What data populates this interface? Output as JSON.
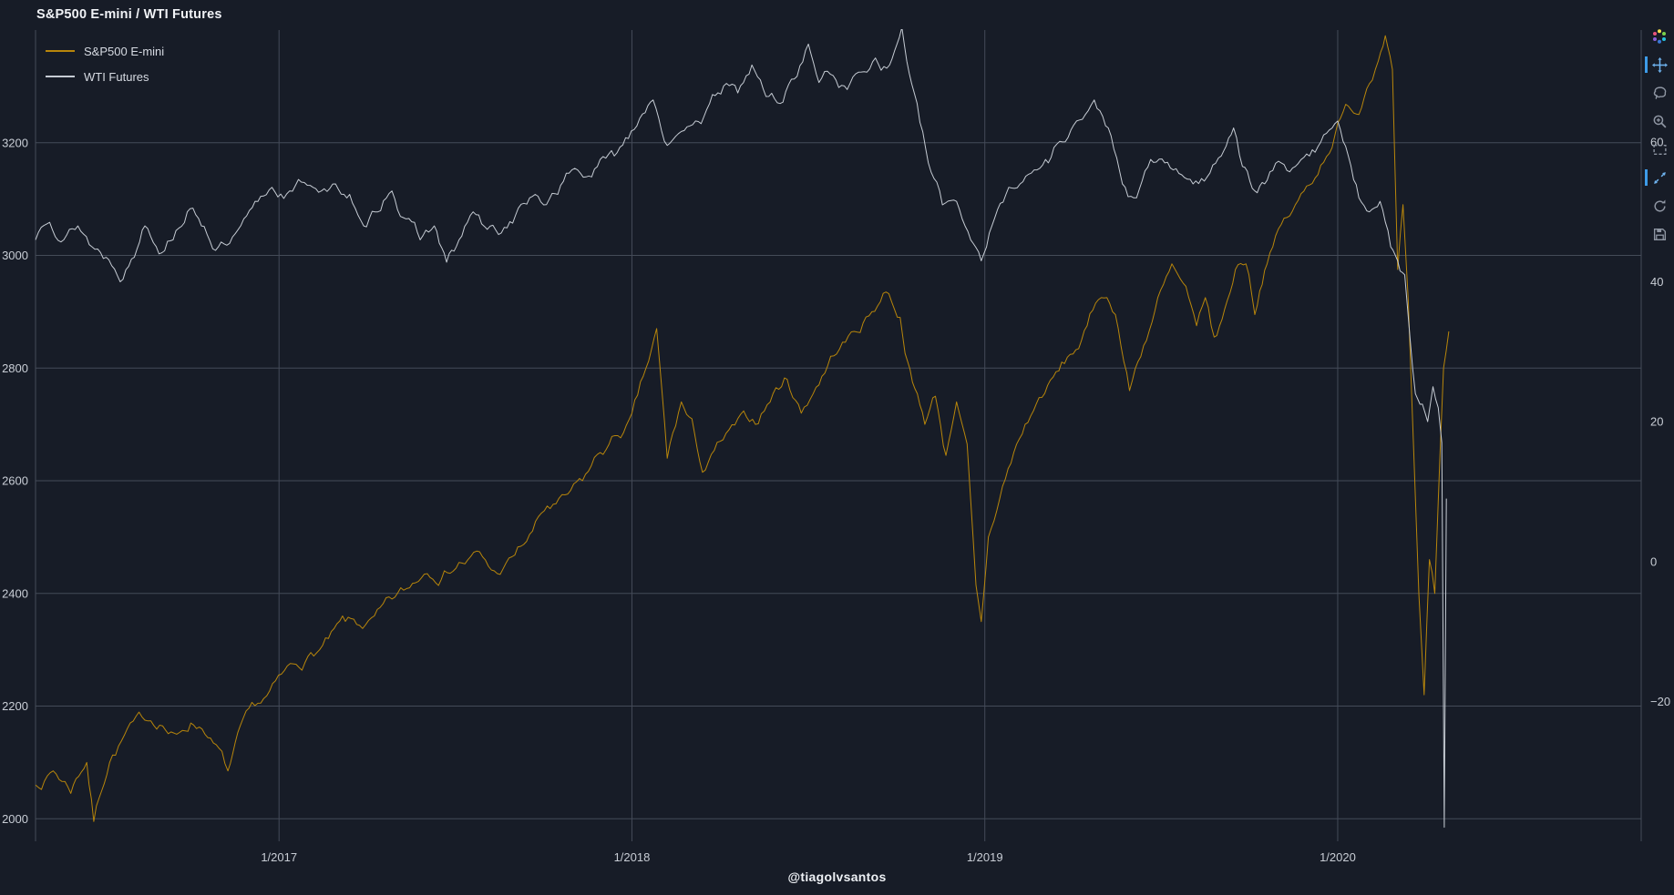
{
  "page": {
    "title": "S&P500 E-mini / WTI Futures"
  },
  "watermark": "@tiagolvsantos",
  "colors": {
    "background": "#171c27",
    "grid": "#444b58",
    "axis_text": "#c8cdd5",
    "title_text": "#f0f2f6",
    "accent_blue": "#3d9be8",
    "modebar_icon": "#8f96a3"
  },
  "modebar": {
    "icons": [
      {
        "name": "plotly-logo",
        "active": false
      },
      {
        "name": "pan",
        "active": true
      },
      {
        "name": "lasso-select",
        "active": false
      },
      {
        "name": "zoom-in",
        "active": false
      },
      {
        "name": "box-select",
        "active": false
      },
      {
        "name": "autoscale",
        "active": true
      },
      {
        "name": "reset-axes",
        "active": false
      },
      {
        "name": "save",
        "active": false
      }
    ]
  },
  "chart_data": {
    "type": "line",
    "title": "S&P500 E-mini / WTI Futures",
    "legend_position": "top-left",
    "grid": true,
    "x_axis": {
      "range": [
        2016.31,
        2020.86
      ],
      "tick_values": [
        2017,
        2018,
        2019,
        2020
      ],
      "tick_labels": [
        "1/2017",
        "1/2018",
        "1/2019",
        "1/2020"
      ]
    },
    "y_axis_left": {
      "range": [
        1960,
        3400
      ],
      "tick_values": [
        2000,
        2200,
        2400,
        2600,
        2800,
        3000,
        3200
      ],
      "tick_labels": [
        "2000",
        "2200",
        "2400",
        "2600",
        "2800",
        "3000",
        "3200"
      ]
    },
    "y_axis_right": {
      "range": [
        -40,
        76
      ],
      "tick_values": [
        -20,
        0,
        20,
        40,
        60
      ],
      "tick_labels": [
        "−20",
        "0",
        "20",
        "40",
        "60"
      ]
    },
    "series": [
      {
        "name": "S&P500 E-mini",
        "color": "#b8860b",
        "axis": "left",
        "line_width": 1,
        "noise": 10,
        "seed": 7,
        "points": [
          [
            2016.31,
            2060
          ],
          [
            2016.36,
            2085
          ],
          [
            2016.41,
            2045
          ],
          [
            2016.455,
            2100
          ],
          [
            2016.475,
            1995
          ],
          [
            2016.52,
            2100
          ],
          [
            2016.57,
            2160
          ],
          [
            2016.62,
            2175
          ],
          [
            2016.67,
            2165
          ],
          [
            2016.71,
            2150
          ],
          [
            2016.75,
            2170
          ],
          [
            2016.79,
            2150
          ],
          [
            2016.83,
            2125
          ],
          [
            2016.855,
            2085
          ],
          [
            2016.89,
            2165
          ],
          [
            2016.94,
            2205
          ],
          [
            2016.99,
            2245
          ],
          [
            2017.04,
            2275
          ],
          [
            2017.09,
            2295
          ],
          [
            2017.14,
            2320
          ],
          [
            2017.18,
            2360
          ],
          [
            2017.22,
            2345
          ],
          [
            2017.27,
            2360
          ],
          [
            2017.32,
            2390
          ],
          [
            2017.37,
            2410
          ],
          [
            2017.42,
            2435
          ],
          [
            2017.46,
            2425
          ],
          [
            2017.51,
            2455
          ],
          [
            2017.56,
            2475
          ],
          [
            2017.61,
            2440
          ],
          [
            2017.66,
            2465
          ],
          [
            2017.71,
            2505
          ],
          [
            2017.76,
            2555
          ],
          [
            2017.81,
            2575
          ],
          [
            2017.86,
            2600
          ],
          [
            2017.91,
            2650
          ],
          [
            2017.96,
            2680
          ],
          [
            2018.0,
            2720
          ],
          [
            2018.04,
            2800
          ],
          [
            2018.07,
            2870
          ],
          [
            2018.1,
            2640
          ],
          [
            2018.14,
            2740
          ],
          [
            2018.17,
            2710
          ],
          [
            2018.2,
            2615
          ],
          [
            2018.25,
            2670
          ],
          [
            2018.3,
            2710
          ],
          [
            2018.35,
            2700
          ],
          [
            2018.4,
            2755
          ],
          [
            2018.44,
            2780
          ],
          [
            2018.48,
            2720
          ],
          [
            2018.53,
            2770
          ],
          [
            2018.58,
            2825
          ],
          [
            2018.63,
            2865
          ],
          [
            2018.68,
            2900
          ],
          [
            2018.72,
            2935
          ],
          [
            2018.76,
            2890
          ],
          [
            2018.795,
            2775
          ],
          [
            2018.83,
            2700
          ],
          [
            2018.86,
            2750
          ],
          [
            2018.89,
            2645
          ],
          [
            2018.92,
            2740
          ],
          [
            2018.95,
            2665
          ],
          [
            2018.975,
            2415
          ],
          [
            2018.99,
            2350
          ],
          [
            2019.01,
            2500
          ],
          [
            2019.05,
            2590
          ],
          [
            2019.09,
            2665
          ],
          [
            2019.13,
            2715
          ],
          [
            2019.17,
            2755
          ],
          [
            2019.21,
            2795
          ],
          [
            2019.25,
            2825
          ],
          [
            2019.29,
            2875
          ],
          [
            2019.33,
            2925
          ],
          [
            2019.37,
            2895
          ],
          [
            2019.41,
            2760
          ],
          [
            2019.45,
            2840
          ],
          [
            2019.49,
            2925
          ],
          [
            2019.53,
            2985
          ],
          [
            2019.57,
            2945
          ],
          [
            2019.6,
            2875
          ],
          [
            2019.625,
            2925
          ],
          [
            2019.65,
            2855
          ],
          [
            2019.68,
            2905
          ],
          [
            2019.71,
            2975
          ],
          [
            2019.74,
            2985
          ],
          [
            2019.765,
            2895
          ],
          [
            2019.8,
            2985
          ],
          [
            2019.84,
            3055
          ],
          [
            2019.88,
            3090
          ],
          [
            2019.92,
            3125
          ],
          [
            2019.96,
            3165
          ],
          [
            2020.0,
            3235
          ],
          [
            2020.03,
            3265
          ],
          [
            2020.06,
            3250
          ],
          [
            2020.09,
            3305
          ],
          [
            2020.115,
            3345
          ],
          [
            2020.135,
            3390
          ],
          [
            2020.155,
            3330
          ],
          [
            2020.17,
            2975
          ],
          [
            2020.185,
            3090
          ],
          [
            2020.2,
            2920
          ],
          [
            2020.215,
            2660
          ],
          [
            2020.23,
            2400
          ],
          [
            2020.245,
            2220
          ],
          [
            2020.26,
            2460
          ],
          [
            2020.275,
            2400
          ],
          [
            2020.29,
            2650
          ],
          [
            2020.3,
            2800
          ],
          [
            2020.315,
            2865
          ]
        ]
      },
      {
        "name": "WTI Futures",
        "color": "#c6ccd4",
        "axis": "right",
        "line_width": 1,
        "noise": 0.8,
        "seed": 13,
        "points": [
          [
            2016.31,
            46
          ],
          [
            2016.35,
            48.5
          ],
          [
            2016.39,
            46
          ],
          [
            2016.43,
            48
          ],
          [
            2016.47,
            45
          ],
          [
            2016.51,
            43.5
          ],
          [
            2016.55,
            40
          ],
          [
            2016.59,
            43.5
          ],
          [
            2016.62,
            48
          ],
          [
            2016.66,
            44
          ],
          [
            2016.7,
            46
          ],
          [
            2016.74,
            50
          ],
          [
            2016.78,
            48
          ],
          [
            2016.82,
            44.5
          ],
          [
            2016.86,
            45.5
          ],
          [
            2016.9,
            49
          ],
          [
            2016.94,
            51.5
          ],
          [
            2016.98,
            53.5
          ],
          [
            2017.03,
            53
          ],
          [
            2017.08,
            53.8
          ],
          [
            2017.12,
            53
          ],
          [
            2017.16,
            54
          ],
          [
            2017.2,
            52.5
          ],
          [
            2017.24,
            48
          ],
          [
            2017.28,
            50
          ],
          [
            2017.32,
            53
          ],
          [
            2017.36,
            49
          ],
          [
            2017.4,
            46
          ],
          [
            2017.44,
            48
          ],
          [
            2017.475,
            42.8
          ],
          [
            2017.51,
            46
          ],
          [
            2017.55,
            50
          ],
          [
            2017.59,
            47.5
          ],
          [
            2017.63,
            47
          ],
          [
            2017.67,
            49.5
          ],
          [
            2017.71,
            52
          ],
          [
            2017.75,
            51
          ],
          [
            2017.79,
            52.5
          ],
          [
            2017.83,
            56
          ],
          [
            2017.87,
            55
          ],
          [
            2017.91,
            57.5
          ],
          [
            2017.95,
            58
          ],
          [
            2017.99,
            60.5
          ],
          [
            2018.03,
            64
          ],
          [
            2018.06,
            66
          ],
          [
            2018.1,
            59.5
          ],
          [
            2018.14,
            61.5
          ],
          [
            2018.18,
            63
          ],
          [
            2018.22,
            65.5
          ],
          [
            2018.26,
            68
          ],
          [
            2018.3,
            67
          ],
          [
            2018.34,
            71
          ],
          [
            2018.38,
            66.5
          ],
          [
            2018.42,
            65.5
          ],
          [
            2018.46,
            69
          ],
          [
            2018.5,
            74
          ],
          [
            2018.53,
            68.5
          ],
          [
            2018.57,
            69.5
          ],
          [
            2018.61,
            67.5
          ],
          [
            2018.65,
            70
          ],
          [
            2018.69,
            72
          ],
          [
            2018.73,
            71
          ],
          [
            2018.765,
            76.4
          ],
          [
            2018.8,
            67
          ],
          [
            2018.84,
            57
          ],
          [
            2018.88,
            51
          ],
          [
            2018.92,
            51.5
          ],
          [
            2018.96,
            46
          ],
          [
            2018.99,
            43
          ],
          [
            2019.02,
            48
          ],
          [
            2019.06,
            52.5
          ],
          [
            2019.1,
            54
          ],
          [
            2019.14,
            56
          ],
          [
            2019.18,
            57
          ],
          [
            2019.22,
            60
          ],
          [
            2019.26,
            63
          ],
          [
            2019.31,
            66
          ],
          [
            2019.35,
            62
          ],
          [
            2019.39,
            54
          ],
          [
            2019.43,
            52
          ],
          [
            2019.47,
            57.5
          ],
          [
            2019.51,
            57
          ],
          [
            2019.55,
            55.5
          ],
          [
            2019.59,
            54
          ],
          [
            2019.63,
            55
          ],
          [
            2019.67,
            58
          ],
          [
            2019.705,
            62
          ],
          [
            2019.73,
            56.5
          ],
          [
            2019.765,
            53
          ],
          [
            2019.8,
            54.5
          ],
          [
            2019.84,
            57
          ],
          [
            2019.88,
            56.5
          ],
          [
            2019.92,
            58
          ],
          [
            2019.96,
            61
          ],
          [
            2020.0,
            63
          ],
          [
            2020.03,
            58
          ],
          [
            2020.06,
            52
          ],
          [
            2020.09,
            50
          ],
          [
            2020.12,
            51.5
          ],
          [
            2020.15,
            45
          ],
          [
            2020.17,
            43
          ],
          [
            2020.19,
            41
          ],
          [
            2020.205,
            32
          ],
          [
            2020.22,
            24
          ],
          [
            2020.24,
            22.5
          ],
          [
            2020.255,
            20
          ],
          [
            2020.27,
            25
          ],
          [
            2020.285,
            22
          ],
          [
            2020.295,
            17
          ],
          [
            2020.302,
            -38
          ],
          [
            2020.308,
            9
          ]
        ]
      }
    ]
  }
}
